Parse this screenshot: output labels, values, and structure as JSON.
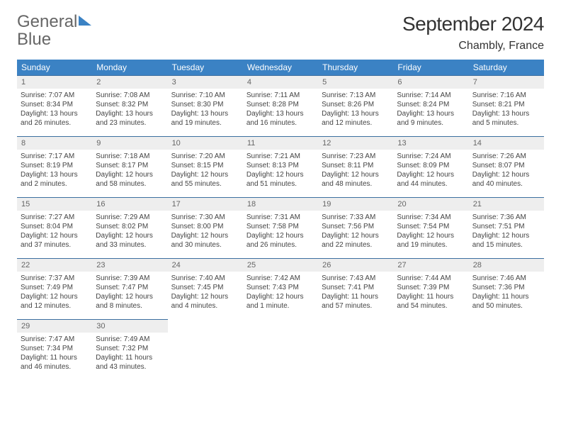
{
  "logo": {
    "line1": "General",
    "line2": "Blue"
  },
  "header": {
    "month_title": "September 2024",
    "location": "Chambly, France"
  },
  "colors": {
    "header_bg": "#3b82c4",
    "header_text": "#ffffff",
    "daynum_bg": "#eeeeee",
    "daynum_border": "#3b6fa0",
    "body_text": "#444444"
  },
  "weekdays": [
    "Sunday",
    "Monday",
    "Tuesday",
    "Wednesday",
    "Thursday",
    "Friday",
    "Saturday"
  ],
  "weeks": [
    [
      {
        "n": "1",
        "sr": "Sunrise: 7:07 AM",
        "ss": "Sunset: 8:34 PM",
        "d1": "Daylight: 13 hours",
        "d2": "and 26 minutes."
      },
      {
        "n": "2",
        "sr": "Sunrise: 7:08 AM",
        "ss": "Sunset: 8:32 PM",
        "d1": "Daylight: 13 hours",
        "d2": "and 23 minutes."
      },
      {
        "n": "3",
        "sr": "Sunrise: 7:10 AM",
        "ss": "Sunset: 8:30 PM",
        "d1": "Daylight: 13 hours",
        "d2": "and 19 minutes."
      },
      {
        "n": "4",
        "sr": "Sunrise: 7:11 AM",
        "ss": "Sunset: 8:28 PM",
        "d1": "Daylight: 13 hours",
        "d2": "and 16 minutes."
      },
      {
        "n": "5",
        "sr": "Sunrise: 7:13 AM",
        "ss": "Sunset: 8:26 PM",
        "d1": "Daylight: 13 hours",
        "d2": "and 12 minutes."
      },
      {
        "n": "6",
        "sr": "Sunrise: 7:14 AM",
        "ss": "Sunset: 8:24 PM",
        "d1": "Daylight: 13 hours",
        "d2": "and 9 minutes."
      },
      {
        "n": "7",
        "sr": "Sunrise: 7:16 AM",
        "ss": "Sunset: 8:21 PM",
        "d1": "Daylight: 13 hours",
        "d2": "and 5 minutes."
      }
    ],
    [
      {
        "n": "8",
        "sr": "Sunrise: 7:17 AM",
        "ss": "Sunset: 8:19 PM",
        "d1": "Daylight: 13 hours",
        "d2": "and 2 minutes."
      },
      {
        "n": "9",
        "sr": "Sunrise: 7:18 AM",
        "ss": "Sunset: 8:17 PM",
        "d1": "Daylight: 12 hours",
        "d2": "and 58 minutes."
      },
      {
        "n": "10",
        "sr": "Sunrise: 7:20 AM",
        "ss": "Sunset: 8:15 PM",
        "d1": "Daylight: 12 hours",
        "d2": "and 55 minutes."
      },
      {
        "n": "11",
        "sr": "Sunrise: 7:21 AM",
        "ss": "Sunset: 8:13 PM",
        "d1": "Daylight: 12 hours",
        "d2": "and 51 minutes."
      },
      {
        "n": "12",
        "sr": "Sunrise: 7:23 AM",
        "ss": "Sunset: 8:11 PM",
        "d1": "Daylight: 12 hours",
        "d2": "and 48 minutes."
      },
      {
        "n": "13",
        "sr": "Sunrise: 7:24 AM",
        "ss": "Sunset: 8:09 PM",
        "d1": "Daylight: 12 hours",
        "d2": "and 44 minutes."
      },
      {
        "n": "14",
        "sr": "Sunrise: 7:26 AM",
        "ss": "Sunset: 8:07 PM",
        "d1": "Daylight: 12 hours",
        "d2": "and 40 minutes."
      }
    ],
    [
      {
        "n": "15",
        "sr": "Sunrise: 7:27 AM",
        "ss": "Sunset: 8:04 PM",
        "d1": "Daylight: 12 hours",
        "d2": "and 37 minutes."
      },
      {
        "n": "16",
        "sr": "Sunrise: 7:29 AM",
        "ss": "Sunset: 8:02 PM",
        "d1": "Daylight: 12 hours",
        "d2": "and 33 minutes."
      },
      {
        "n": "17",
        "sr": "Sunrise: 7:30 AM",
        "ss": "Sunset: 8:00 PM",
        "d1": "Daylight: 12 hours",
        "d2": "and 30 minutes."
      },
      {
        "n": "18",
        "sr": "Sunrise: 7:31 AM",
        "ss": "Sunset: 7:58 PM",
        "d1": "Daylight: 12 hours",
        "d2": "and 26 minutes."
      },
      {
        "n": "19",
        "sr": "Sunrise: 7:33 AM",
        "ss": "Sunset: 7:56 PM",
        "d1": "Daylight: 12 hours",
        "d2": "and 22 minutes."
      },
      {
        "n": "20",
        "sr": "Sunrise: 7:34 AM",
        "ss": "Sunset: 7:54 PM",
        "d1": "Daylight: 12 hours",
        "d2": "and 19 minutes."
      },
      {
        "n": "21",
        "sr": "Sunrise: 7:36 AM",
        "ss": "Sunset: 7:51 PM",
        "d1": "Daylight: 12 hours",
        "d2": "and 15 minutes."
      }
    ],
    [
      {
        "n": "22",
        "sr": "Sunrise: 7:37 AM",
        "ss": "Sunset: 7:49 PM",
        "d1": "Daylight: 12 hours",
        "d2": "and 12 minutes."
      },
      {
        "n": "23",
        "sr": "Sunrise: 7:39 AM",
        "ss": "Sunset: 7:47 PM",
        "d1": "Daylight: 12 hours",
        "d2": "and 8 minutes."
      },
      {
        "n": "24",
        "sr": "Sunrise: 7:40 AM",
        "ss": "Sunset: 7:45 PM",
        "d1": "Daylight: 12 hours",
        "d2": "and 4 minutes."
      },
      {
        "n": "25",
        "sr": "Sunrise: 7:42 AM",
        "ss": "Sunset: 7:43 PM",
        "d1": "Daylight: 12 hours",
        "d2": "and 1 minute."
      },
      {
        "n": "26",
        "sr": "Sunrise: 7:43 AM",
        "ss": "Sunset: 7:41 PM",
        "d1": "Daylight: 11 hours",
        "d2": "and 57 minutes."
      },
      {
        "n": "27",
        "sr": "Sunrise: 7:44 AM",
        "ss": "Sunset: 7:39 PM",
        "d1": "Daylight: 11 hours",
        "d2": "and 54 minutes."
      },
      {
        "n": "28",
        "sr": "Sunrise: 7:46 AM",
        "ss": "Sunset: 7:36 PM",
        "d1": "Daylight: 11 hours",
        "d2": "and 50 minutes."
      }
    ],
    [
      {
        "n": "29",
        "sr": "Sunrise: 7:47 AM",
        "ss": "Sunset: 7:34 PM",
        "d1": "Daylight: 11 hours",
        "d2": "and 46 minutes."
      },
      {
        "n": "30",
        "sr": "Sunrise: 7:49 AM",
        "ss": "Sunset: 7:32 PM",
        "d1": "Daylight: 11 hours",
        "d2": "and 43 minutes."
      },
      null,
      null,
      null,
      null,
      null
    ]
  ]
}
